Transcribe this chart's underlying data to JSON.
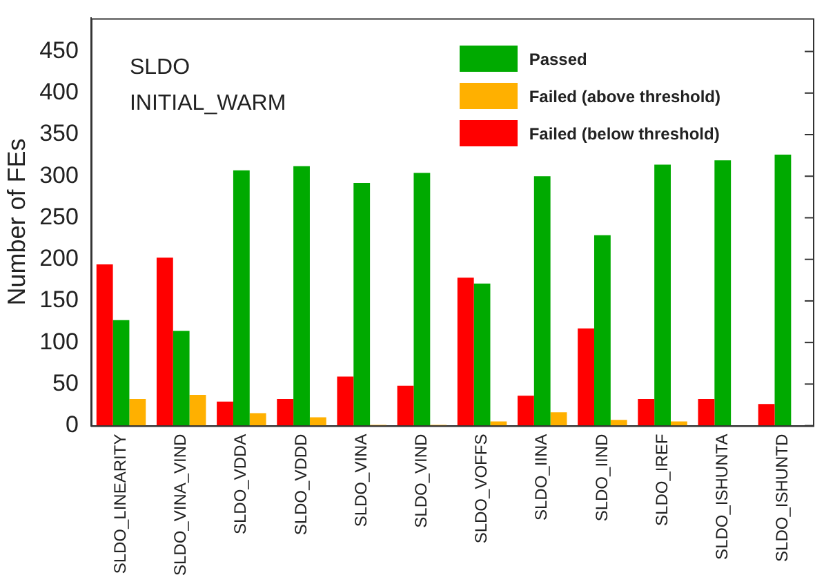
{
  "chart_data": {
    "type": "bar",
    "ylabel": "Number of FEs",
    "annotations": [
      "SLDO",
      "INITIAL_WARM"
    ],
    "categories": [
      "SLDO_LINEARITY",
      "SLDO_VINA_VIND",
      "SLDO_VDDA",
      "SLDO_VDDD",
      "SLDO_VINA",
      "SLDO_VIND",
      "SLDO_VOFFS",
      "SLDO_IINA",
      "SLDO_IIND",
      "SLDO_IREF",
      "SLDO_ISHUNTA",
      "SLDO_ISHUNTD"
    ],
    "series": [
      {
        "name": "Failed (below threshold)",
        "color": "#ff0000",
        "values": [
          194,
          202,
          29,
          32,
          59,
          48,
          178,
          36,
          117,
          32,
          32,
          26
        ]
      },
      {
        "name": "Passed",
        "color": "#00aa00",
        "values": [
          127,
          114,
          307,
          312,
          292,
          304,
          171,
          300,
          229,
          314,
          319,
          326
        ]
      },
      {
        "name": "Failed (above threshold)",
        "color": "#ffb000",
        "values": [
          32,
          37,
          15,
          10,
          1,
          1,
          5,
          16,
          7,
          5,
          0,
          0
        ]
      }
    ],
    "ylim": [
      0,
      490
    ],
    "yticks": [
      0,
      50,
      100,
      150,
      200,
      250,
      300,
      350,
      400,
      450
    ],
    "grid": false,
    "legend": "top right"
  }
}
